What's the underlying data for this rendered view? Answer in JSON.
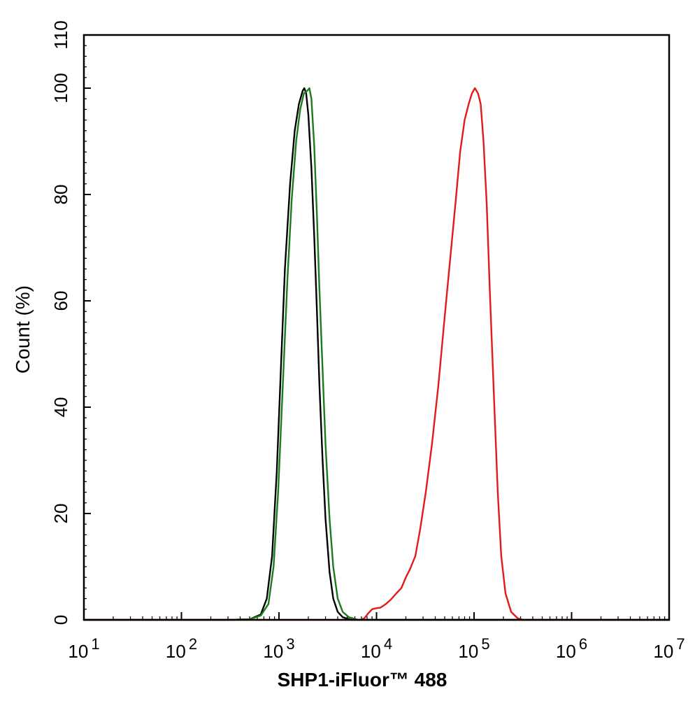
{
  "chart_data": {
    "type": "line",
    "xlabel": "SHP1-iFluor™ 488",
    "ylabel": "Count  (%)",
    "xscale": "log",
    "xlim": [
      10,
      10000000
    ],
    "ylim": [
      0,
      110
    ],
    "grid": false,
    "legend": "none",
    "x_ticks": [
      {
        "base": "10",
        "exp": "1"
      },
      {
        "base": "10",
        "exp": "2"
      },
      {
        "base": "10",
        "exp": "3"
      },
      {
        "base": "10",
        "exp": "4"
      },
      {
        "base": "10",
        "exp": "5"
      },
      {
        "base": "10",
        "exp": "6"
      },
      {
        "base": "10",
        "exp": "7"
      }
    ],
    "y_ticks": [
      "0",
      "20",
      "40",
      "60",
      "80",
      "100",
      "110"
    ],
    "series": [
      {
        "color": "#000000",
        "points": [
          [
            10,
            0
          ],
          [
            300,
            0
          ],
          [
            500,
            0.1
          ],
          [
            650,
            1
          ],
          [
            750,
            4
          ],
          [
            850,
            12
          ],
          [
            950,
            28
          ],
          [
            1050,
            48
          ],
          [
            1150,
            66
          ],
          [
            1300,
            82
          ],
          [
            1450,
            92
          ],
          [
            1600,
            97
          ],
          [
            1750,
            99.5
          ],
          [
            1820,
            100
          ],
          [
            1900,
            99
          ],
          [
            2000,
            95
          ],
          [
            2150,
            85
          ],
          [
            2300,
            72
          ],
          [
            2450,
            58
          ],
          [
            2600,
            44
          ],
          [
            2800,
            30
          ],
          [
            3000,
            19
          ],
          [
            3300,
            9
          ],
          [
            3600,
            4
          ],
          [
            4000,
            1.5
          ],
          [
            4500,
            0.5
          ],
          [
            5500,
            0
          ],
          [
            10000000,
            0
          ]
        ]
      },
      {
        "color": "#1a7d1a",
        "points": [
          [
            10,
            0
          ],
          [
            300,
            0
          ],
          [
            500,
            0.1
          ],
          [
            650,
            0.8
          ],
          [
            780,
            3
          ],
          [
            880,
            10
          ],
          [
            980,
            24
          ],
          [
            1100,
            45
          ],
          [
            1220,
            64
          ],
          [
            1350,
            79
          ],
          [
            1500,
            90
          ],
          [
            1650,
            96
          ],
          [
            1800,
            99
          ],
          [
            1950,
            99.5
          ],
          [
            2050,
            100
          ],
          [
            2150,
            98
          ],
          [
            2300,
            89
          ],
          [
            2450,
            76
          ],
          [
            2600,
            62
          ],
          [
            2800,
            47
          ],
          [
            3000,
            33
          ],
          [
            3300,
            19
          ],
          [
            3600,
            10
          ],
          [
            4000,
            4
          ],
          [
            4500,
            1.5
          ],
          [
            5200,
            0.5
          ],
          [
            6500,
            0
          ],
          [
            10000000,
            0
          ]
        ]
      },
      {
        "color": "#e31a1a",
        "points": [
          [
            10,
            0
          ],
          [
            6800,
            0
          ],
          [
            7500,
            0.3
          ],
          [
            8200,
            1.2
          ],
          [
            9000,
            2
          ],
          [
            10000,
            2.2
          ],
          [
            11000,
            2.3
          ],
          [
            12500,
            3
          ],
          [
            14000,
            3.8
          ],
          [
            16000,
            5
          ],
          [
            18000,
            6
          ],
          [
            20000,
            8
          ],
          [
            22000,
            9.5
          ],
          [
            25000,
            12
          ],
          [
            28000,
            17
          ],
          [
            32000,
            24
          ],
          [
            37000,
            33
          ],
          [
            43000,
            44
          ],
          [
            50000,
            57
          ],
          [
            57000,
            68
          ],
          [
            65000,
            79
          ],
          [
            72000,
            88
          ],
          [
            80000,
            94
          ],
          [
            88000,
            97
          ],
          [
            95000,
            99
          ],
          [
            102000,
            100
          ],
          [
            110000,
            99
          ],
          [
            117000,
            97
          ],
          [
            125000,
            90
          ],
          [
            135000,
            78
          ],
          [
            145000,
            62
          ],
          [
            160000,
            42
          ],
          [
            175000,
            24
          ],
          [
            190000,
            12
          ],
          [
            210000,
            5
          ],
          [
            240000,
            1.5
          ],
          [
            280000,
            0.3
          ],
          [
            320000,
            0
          ],
          [
            10000000,
            0
          ]
        ]
      }
    ]
  }
}
